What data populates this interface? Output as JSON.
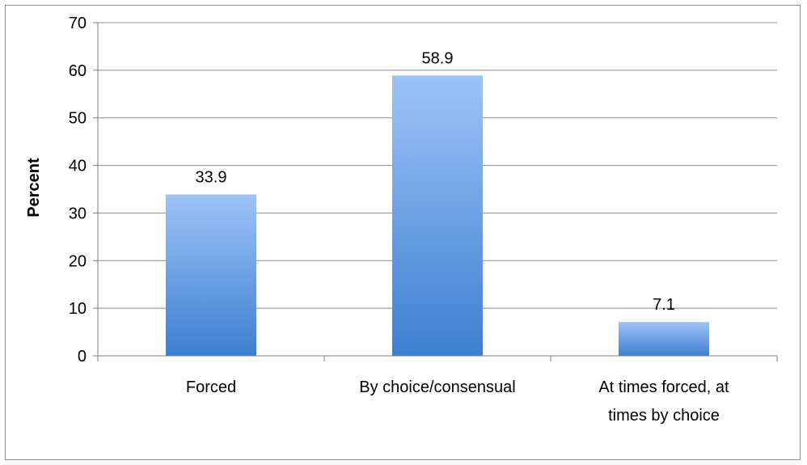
{
  "chart_data": {
    "type": "bar",
    "categories": [
      "Forced",
      "By choice/consensual",
      "At times forced, at times by choice"
    ],
    "category_lines": [
      [
        "Forced"
      ],
      [
        "By choice/consensual"
      ],
      [
        "At times forced, at",
        "times by choice"
      ]
    ],
    "values": [
      33.9,
      58.9,
      7.1
    ],
    "data_labels": [
      "33.9",
      "58.9",
      "7.1"
    ],
    "title": "",
    "xlabel": "",
    "ylabel": "Percent",
    "ylim": [
      0,
      70
    ],
    "yticks": [
      0,
      10,
      20,
      30,
      40,
      50,
      60,
      70
    ],
    "grid": true,
    "legend": "none",
    "colors": {
      "bar_top": "#9dc3f8",
      "bar_bottom": "#3d7fd0",
      "grid": "#8c8c8c",
      "axis": "#7f7f7f"
    }
  }
}
